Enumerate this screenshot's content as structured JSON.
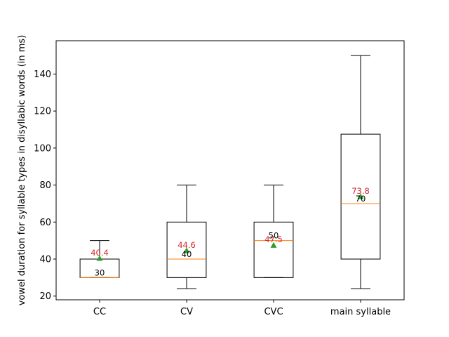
{
  "chart_data": {
    "type": "box",
    "title": "",
    "xlabel": "",
    "ylabel": "vowel duration for syllable types in disyllabic words (in ms)",
    "ylim": [
      18,
      158
    ],
    "yticks": [
      20,
      40,
      60,
      80,
      100,
      120,
      140
    ],
    "grid": false,
    "categories": [
      "CC",
      "CV",
      "CVC",
      "main syllable"
    ],
    "boxes": [
      {
        "whisker_low": 30,
        "q1": 30,
        "median": 30,
        "q3": 40,
        "whisker_high": 50,
        "mean": 40.4,
        "median_label": "30",
        "mean_label": "40.4"
      },
      {
        "whisker_low": 24,
        "q1": 30,
        "median": 40,
        "q3": 60,
        "whisker_high": 80,
        "mean": 44.6,
        "median_label": "40",
        "mean_label": "44.6"
      },
      {
        "whisker_low": 30,
        "q1": 30,
        "median": 50,
        "q3": 60,
        "whisker_high": 80,
        "mean": 47.5,
        "median_label": "50",
        "mean_label": "47.5"
      },
      {
        "whisker_low": 24,
        "q1": 40,
        "median": 70,
        "q3": 107.5,
        "whisker_high": 150,
        "mean": 73.8,
        "median_label": "70",
        "mean_label": "73.8"
      }
    ],
    "colors": {
      "box": "#000000",
      "median": "#ff7f0e",
      "mean_marker": "#2ca02c",
      "mean_label": "#d62728",
      "median_label": "#000000"
    }
  }
}
